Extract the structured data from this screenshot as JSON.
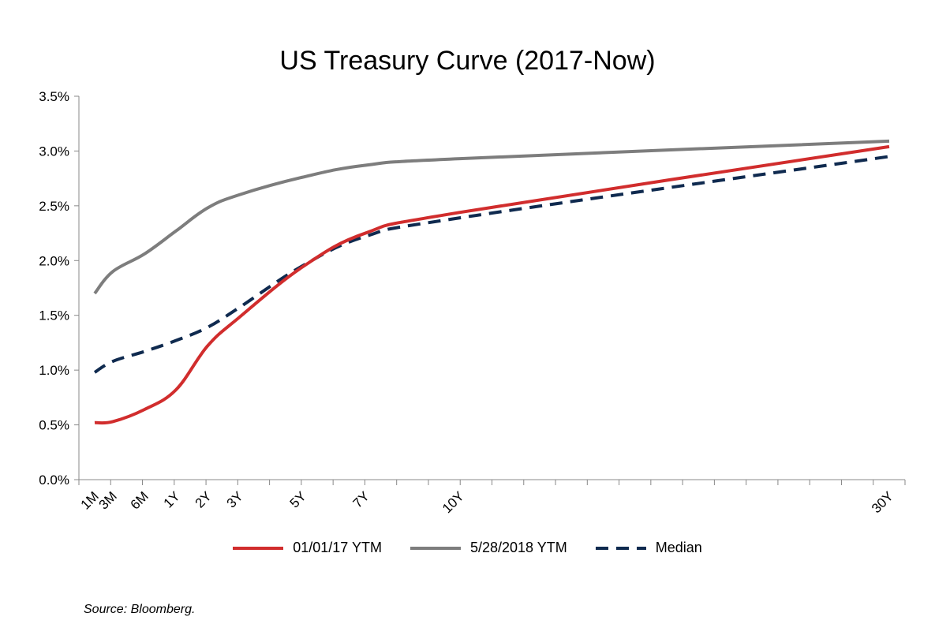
{
  "chart_data": {
    "type": "line",
    "title": "US Treasury Curve (2017-Now)",
    "x": [
      "1M",
      "3M",
      "6M",
      "1Y",
      "2Y",
      "3Y",
      "5Y",
      "7Y",
      "10Y",
      "30Y"
    ],
    "ylim": [
      0,
      3.5
    ],
    "yticks": [
      0.0,
      0.5,
      1.0,
      1.5,
      2.0,
      2.5,
      3.0,
      3.5
    ],
    "ytick_labels": [
      "0.0%",
      "0.5%",
      "1.0%",
      "1.5%",
      "2.0%",
      "2.5%",
      "3.0%",
      "3.5%"
    ],
    "grid": false,
    "legend_position": "bottom",
    "series": [
      {
        "name": "01/01/17 YTM",
        "color": "#d12d2d",
        "dash": "solid",
        "values": [
          0.52,
          0.53,
          0.64,
          0.82,
          1.22,
          1.48,
          1.94,
          2.25,
          2.44,
          3.04
        ]
      },
      {
        "name": "5/28/2018 YTM",
        "color": "#7d7d7d",
        "dash": "solid",
        "values": [
          1.7,
          1.9,
          2.06,
          2.27,
          2.48,
          2.6,
          2.76,
          2.87,
          2.93,
          3.09
        ]
      },
      {
        "name": "Median",
        "color": "#0f2a4f",
        "dash": "dashed",
        "values": [
          0.98,
          1.08,
          1.17,
          1.27,
          1.39,
          1.57,
          1.95,
          2.22,
          2.39,
          2.95
        ]
      }
    ]
  },
  "source": "Source: Bloomberg."
}
